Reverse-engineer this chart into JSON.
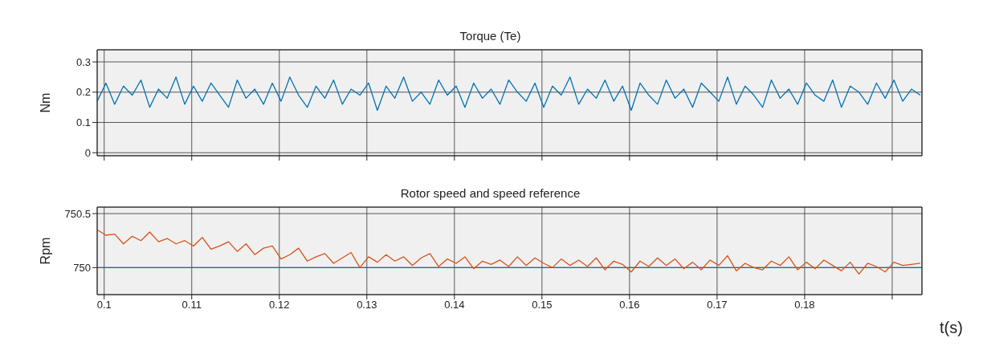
{
  "chart_data": [
    {
      "type": "line",
      "title": "Torque (Te)",
      "ylabel": "Nm",
      "xlim": [
        0.0992,
        0.1934
      ],
      "ylim": [
        -0.01,
        0.34
      ],
      "yticks": [
        0,
        0.1,
        0.2,
        0.3
      ],
      "xticks": [
        0.1,
        0.11,
        0.12,
        0.13,
        0.14,
        0.15,
        0.16,
        0.17,
        0.18,
        {
          "value": 0.19,
          "label": null
        }
      ],
      "grid": true,
      "tick_labels": "y",
      "marker": "none",
      "line_style": "solid",
      "x": [
        0.0992,
        0.1002,
        0.1012,
        0.1022,
        0.1032,
        0.1042,
        0.1052,
        0.1062,
        0.1072,
        0.1082,
        0.1092,
        0.1102,
        0.1112,
        0.1122,
        0.1132,
        0.1142,
        0.1152,
        0.1162,
        0.1172,
        0.1182,
        0.1192,
        0.1202,
        0.1212,
        0.1222,
        0.1232,
        0.1242,
        0.1252,
        0.1262,
        0.1272,
        0.1282,
        0.1292,
        0.1302,
        0.1312,
        0.1322,
        0.1332,
        0.1342,
        0.1352,
        0.1362,
        0.1372,
        0.1382,
        0.1392,
        0.1402,
        0.1412,
        0.1422,
        0.1432,
        0.1442,
        0.1452,
        0.1462,
        0.1472,
        0.1482,
        0.1492,
        0.1502,
        0.1512,
        0.1522,
        0.1532,
        0.1542,
        0.1552,
        0.1562,
        0.1572,
        0.1582,
        0.1592,
        0.1602,
        0.1612,
        0.1622,
        0.1632,
        0.1642,
        0.1652,
        0.1662,
        0.1672,
        0.1682,
        0.1692,
        0.1702,
        0.1712,
        0.1722,
        0.1732,
        0.1742,
        0.1752,
        0.1762,
        0.1772,
        0.1782,
        0.1792,
        0.1802,
        0.1812,
        0.1822,
        0.1832,
        0.1842,
        0.1852,
        0.1862,
        0.1872,
        0.1882,
        0.1892,
        0.1902,
        0.1912,
        0.1922,
        0.1932
      ],
      "series": [
        {
          "color": "#0072bd",
          "values": [
            0.17,
            0.23,
            0.16,
            0.22,
            0.19,
            0.24,
            0.15,
            0.21,
            0.18,
            0.25,
            0.16,
            0.22,
            0.17,
            0.23,
            0.19,
            0.15,
            0.24,
            0.18,
            0.21,
            0.16,
            0.23,
            0.17,
            0.25,
            0.19,
            0.15,
            0.22,
            0.18,
            0.24,
            0.16,
            0.21,
            0.19,
            0.23,
            0.14,
            0.22,
            0.18,
            0.25,
            0.17,
            0.2,
            0.16,
            0.24,
            0.19,
            0.22,
            0.15,
            0.23,
            0.18,
            0.21,
            0.16,
            0.24,
            0.2,
            0.17,
            0.23,
            0.15,
            0.22,
            0.19,
            0.25,
            0.16,
            0.21,
            0.18,
            0.24,
            0.17,
            0.22,
            0.14,
            0.23,
            0.19,
            0.16,
            0.24,
            0.18,
            0.21,
            0.15,
            0.23,
            0.2,
            0.17,
            0.25,
            0.16,
            0.22,
            0.19,
            0.15,
            0.24,
            0.18,
            0.21,
            0.16,
            0.23,
            0.19,
            0.17,
            0.24,
            0.15,
            0.22,
            0.2,
            0.16,
            0.23,
            0.18,
            0.24,
            0.17,
            0.21,
            0.19
          ]
        }
      ]
    },
    {
      "type": "line",
      "title": "Rotor speed and speed reference",
      "ylabel": "Rpm",
      "xlabel": "t(s)",
      "xlim": [
        0.0992,
        0.1934
      ],
      "ylim": [
        749.75,
        750.56
      ],
      "yticks": [
        750,
        750.5
      ],
      "xticks": [
        0.1,
        0.11,
        0.12,
        0.13,
        0.14,
        0.15,
        0.16,
        0.17,
        0.18,
        {
          "value": 0.19,
          "label": null
        }
      ],
      "grid": true,
      "marker": "none",
      "line_style": "solid",
      "x": [
        0.0992,
        0.1002,
        0.1012,
        0.1022,
        0.1032,
        0.1042,
        0.1052,
        0.1062,
        0.1072,
        0.1082,
        0.1092,
        0.1102,
        0.1112,
        0.1122,
        0.1132,
        0.1142,
        0.1152,
        0.1162,
        0.1172,
        0.1182,
        0.1192,
        0.1202,
        0.1212,
        0.1222,
        0.1232,
        0.1242,
        0.1252,
        0.1262,
        0.1272,
        0.1282,
        0.1292,
        0.1302,
        0.1312,
        0.1322,
        0.1332,
        0.1342,
        0.1352,
        0.1362,
        0.1372,
        0.1382,
        0.1392,
        0.1402,
        0.1412,
        0.1422,
        0.1432,
        0.1442,
        0.1452,
        0.1462,
        0.1472,
        0.1482,
        0.1492,
        0.1502,
        0.1512,
        0.1522,
        0.1532,
        0.1542,
        0.1552,
        0.1562,
        0.1572,
        0.1582,
        0.1592,
        0.1602,
        0.1612,
        0.1622,
        0.1632,
        0.1642,
        0.1652,
        0.1662,
        0.1672,
        0.1682,
        0.1692,
        0.1702,
        0.1712,
        0.1722,
        0.1732,
        0.1742,
        0.1752,
        0.1762,
        0.1772,
        0.1782,
        0.1792,
        0.1802,
        0.1812,
        0.1822,
        0.1832,
        0.1842,
        0.1852,
        0.1862,
        0.1872,
        0.1882,
        0.1892,
        0.1902,
        0.1912,
        0.1922,
        0.1932
      ],
      "series": [
        {
          "color": "#0072bd",
          "x": [
            0.0992,
            0.1934
          ],
          "values": [
            750,
            750
          ]
        },
        {
          "color": "#d95319",
          "values": [
            750.35,
            750.3,
            750.31,
            750.22,
            750.29,
            750.25,
            750.33,
            750.24,
            750.27,
            750.22,
            750.25,
            750.2,
            750.28,
            750.17,
            750.2,
            750.24,
            750.15,
            750.22,
            750.12,
            750.18,
            750.2,
            750.08,
            750.12,
            750.18,
            750.06,
            750.1,
            750.13,
            750.04,
            750.09,
            750.14,
            750,
            750.1,
            750.05,
            750.12,
            750.06,
            750.1,
            750.02,
            750.09,
            750.13,
            750.01,
            750.08,
            750.04,
            750.1,
            749.99,
            750.06,
            750.03,
            750.07,
            750.01,
            750.1,
            750.02,
            750.09,
            750.04,
            750,
            750.08,
            750.02,
            750.07,
            750.01,
            750.09,
            749.98,
            750.06,
            750.03,
            749.96,
            750.06,
            750.01,
            750.09,
            750.02,
            750.08,
            749.99,
            750.05,
            749.98,
            750.07,
            750.02,
            750.11,
            749.97,
            750.04,
            750,
            749.98,
            750.06,
            750.02,
            750.1,
            749.98,
            750.05,
            749.99,
            750.07,
            750.02,
            749.97,
            750.05,
            749.94,
            750.04,
            750.01,
            749.96,
            750.05,
            750.02,
            750.03,
            750.04
          ]
        }
      ]
    }
  ]
}
